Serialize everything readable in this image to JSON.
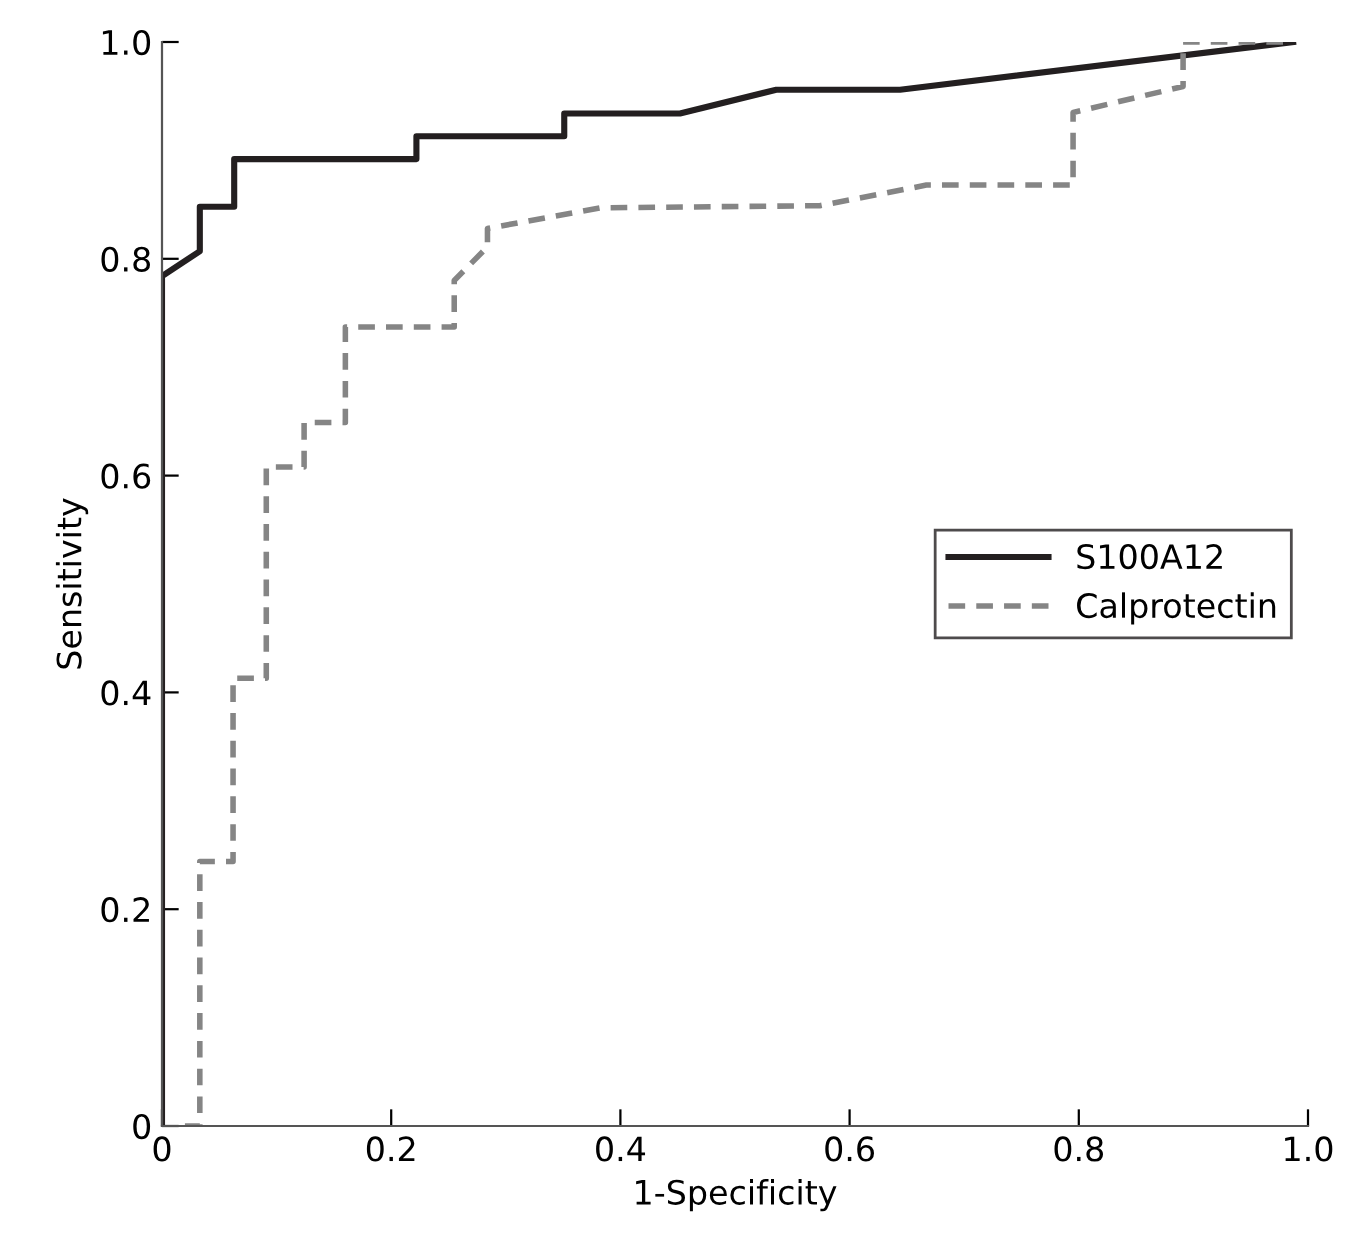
{
  "chart_data": {
    "type": "line",
    "xlabel": "1-Specificity",
    "ylabel": "Sensitivity",
    "xlim": [
      0,
      1.0
    ],
    "ylim": [
      0,
      1.0
    ],
    "xticks": [
      0,
      0.2,
      0.4,
      0.6,
      0.8,
      {
        "value": 1,
        "label": "1.0"
      }
    ],
    "yticks": [
      0,
      0.2,
      0.4,
      0.6,
      0.8,
      {
        "value": 1,
        "label": "1.0"
      }
    ],
    "grid": false,
    "legend": "right",
    "marker": "none",
    "series": [
      {
        "name": "S100A12",
        "color": "#231f20",
        "line_style": "solid",
        "x": [
          0,
          0,
          0.033,
          0.033,
          0.063,
          0.063,
          0.222,
          0.222,
          0.351,
          0.351,
          0.452,
          0.536,
          0.644,
          0.987
        ],
        "values": [
          0,
          0.784,
          0.807,
          0.848,
          0.848,
          0.892,
          0.892,
          0.913,
          0.913,
          0.934,
          0.934,
          0.956,
          0.956,
          1.0
        ]
      },
      {
        "name": "Calprotectin",
        "color": "#858585",
        "line_style": "dashed",
        "x": [
          0.02,
          0.033,
          0.033,
          0.062,
          0.062,
          0.091,
          0.091,
          0.124,
          0.124,
          0.16,
          0.16,
          0.255,
          0.255,
          0.284,
          0.284,
          0.382,
          0.574,
          0.667,
          0.795,
          0.795,
          0.891,
          0.891,
          0.987
        ],
        "values": [
          0,
          0,
          0.244,
          0.244,
          0.413,
          0.413,
          0.608,
          0.608,
          0.649,
          0.649,
          0.737,
          0.737,
          0.78,
          0.811,
          0.828,
          0.847,
          0.849,
          0.868,
          0.868,
          0.935,
          0.959,
          1.0,
          1.0
        ]
      }
    ]
  }
}
